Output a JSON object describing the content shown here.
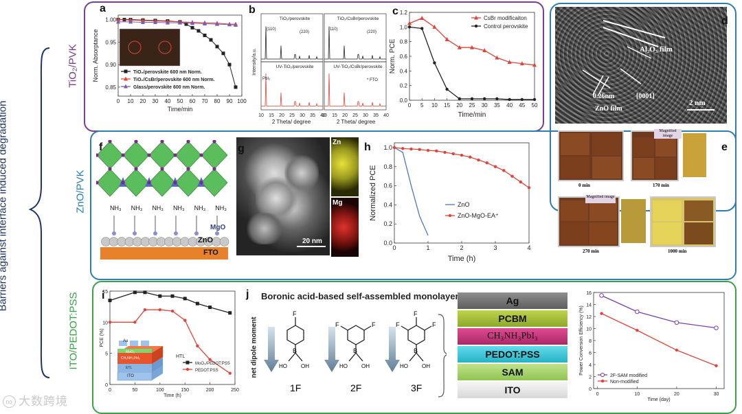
{
  "figure": {
    "side_title": "Barriers against interface induced degradation",
    "rows": [
      "TiO₂/PVK",
      "ZnO/PVK",
      "ITO/PEDOT:PSS"
    ],
    "watermark": "大数跨境",
    "colors": {
      "row1": "#7a3e8f",
      "row2": "#2f7db0",
      "row3": "#3aa14a",
      "red": "#e0443a",
      "black": "#222222",
      "purple": "#7a5bb5",
      "blue": "#4a78c7"
    }
  },
  "panels": {
    "a": {
      "letter": "a"
    },
    "b": {
      "letter": "b"
    },
    "c": {
      "letter": "c"
    },
    "d": {
      "letter": "d",
      "labels": [
        "Al₂O₃ film",
        "0.26nm",
        "[0001]",
        "ZnO film",
        "2 nm"
      ]
    },
    "e": {
      "letter": "e",
      "labels": [
        "0 min",
        "170 min",
        "270 min",
        "1000 min",
        "Magnified image",
        "Magnified image"
      ]
    },
    "f": {
      "letter": "f",
      "labels": [
        "NH₃",
        "NH₃",
        "NH₃",
        "NH₃",
        "NH₃",
        "NH₃",
        "MgO",
        "ZnO",
        "FTO"
      ]
    },
    "g": {
      "letter": "g",
      "labels": [
        "Zn",
        "Mg",
        "20 nm"
      ]
    },
    "h": {
      "letter": "h"
    },
    "i": {
      "letter": "i",
      "stack": [
        "Au",
        "HTL",
        "MoO₃",
        "CH₃NH₃PbI₃",
        "ETL",
        "ITO"
      ]
    },
    "j": {
      "letter": "j",
      "title": "Boronic acid-based self-assembled monolayer",
      "axis": "net dipole moment",
      "molecules": [
        "1F",
        "2F",
        "3F"
      ],
      "atoms": [
        "F",
        "F",
        "F",
        "F",
        "F",
        "F",
        "B",
        "B",
        "B",
        "HO",
        "OH",
        "HO",
        "OH",
        "HO",
        "OH"
      ]
    },
    "stack": {
      "layers": [
        "Ag",
        "PCBM",
        "CH₃NH₃PbI₃",
        "PEDOT:PSS",
        "SAM",
        "ITO"
      ],
      "colors": [
        "#7d7d7d",
        "#a9c13c",
        "#c9347a",
        "#39c6d8",
        "#a9d36a",
        "#eeeeee"
      ]
    }
  },
  "chart_data": [
    {
      "id": "a",
      "type": "line",
      "xlabel": "Time/min",
      "ylabel": "Norm. Absorptance",
      "xlim": [
        0,
        100
      ],
      "ylim": [
        0.83,
        1.01
      ],
      "xticks": [
        0,
        10,
        20,
        30,
        40,
        50,
        60,
        70,
        80,
        90,
        100
      ],
      "yticks": [
        0.85,
        0.9,
        0.95,
        1.0
      ],
      "series": [
        {
          "name": "TiO₂/perovskite 600 nm Norm.",
          "color": "#222222",
          "x": [
            0,
            5,
            10,
            20,
            30,
            40,
            50,
            55,
            60,
            65,
            70,
            75,
            80,
            85,
            90,
            95
          ],
          "y": [
            1.0,
            1.0,
            1.0,
            0.999,
            0.998,
            0.997,
            0.995,
            0.99,
            0.982,
            0.975,
            0.965,
            0.955,
            0.94,
            0.925,
            0.9,
            0.85
          ]
        },
        {
          "name": "TiO₂/CsBr/perovskite 600 nm Norm.",
          "color": "#e0443a",
          "x": [
            0,
            10,
            20,
            30,
            40,
            50,
            60,
            70,
            80,
            90,
            95
          ],
          "y": [
            1.0,
            0.999,
            0.998,
            0.997,
            0.996,
            0.995,
            0.994,
            0.993,
            0.992,
            0.99,
            0.99
          ]
        },
        {
          "name": "Glass/perovskite 600 nm Norm.",
          "color": "#7a5bb5",
          "x": [
            0,
            10,
            20,
            30,
            40,
            50,
            60,
            70,
            80,
            90,
            95
          ],
          "y": [
            0.995,
            0.995,
            0.994,
            0.994,
            0.993,
            0.993,
            0.992,
            0.991,
            0.99,
            0.989,
            0.988
          ]
        }
      ]
    },
    {
      "id": "b",
      "type": "line",
      "xlabel": "2 Theta/ degree",
      "ylabel": "Intensity/a.u.",
      "xticks": [
        10,
        15,
        20,
        25,
        30,
        35,
        40
      ],
      "subplots": [
        "TiO₂/perovskite",
        "TiO₂/CsBr/perovskite",
        "UV-TiO₂/perovskite",
        "UV-TiO₂/CsBr/perovskite"
      ],
      "annotations": [
        "(110)",
        "(220)",
        "(110)",
        "(220)",
        "PbI₂",
        "* FTO"
      ]
    },
    {
      "id": "c",
      "type": "line",
      "xlabel": "Time/min",
      "ylabel": "Norm. PCE",
      "xlim": [
        0,
        50
      ],
      "ylim": [
        0,
        1.2
      ],
      "xticks": [
        0,
        5,
        10,
        15,
        20,
        25,
        30,
        35,
        40,
        45,
        50
      ],
      "yticks": [
        0.0,
        0.2,
        0.4,
        0.6,
        0.8,
        1.0,
        1.2
      ],
      "series": [
        {
          "name": "CsBr modificaiton",
          "color": "#e0443a",
          "x": [
            0,
            5,
            10,
            15,
            20,
            25,
            30,
            35,
            40,
            45,
            50
          ],
          "y": [
            1.05,
            1.12,
            1.0,
            0.83,
            0.72,
            0.72,
            0.68,
            0.58,
            0.52,
            0.5,
            0.48
          ]
        },
        {
          "name": "Control perovskite",
          "color": "#222222",
          "x": [
            0,
            5,
            10,
            15,
            20,
            25,
            30,
            35,
            40,
            45,
            50
          ],
          "y": [
            1.0,
            0.98,
            0.51,
            0.15,
            0.02,
            0.02,
            0.02,
            0.02,
            0.01,
            0.01,
            0.01
          ]
        }
      ]
    },
    {
      "id": "h",
      "type": "line",
      "xlabel": "Time (h)",
      "ylabel": "Normalized PCE",
      "xlim": [
        0,
        4
      ],
      "ylim": [
        0,
        1.05
      ],
      "xticks": [
        0,
        1,
        2,
        3,
        4
      ],
      "yticks": [
        0.0,
        0.2,
        0.4,
        0.6,
        0.8,
        1.0
      ],
      "series": [
        {
          "name": "ZnO",
          "color": "#4a78c7",
          "x": [
            0,
            0.25,
            0.5,
            0.75,
            1.0
          ],
          "y": [
            1.0,
            0.95,
            0.6,
            0.28,
            0.08
          ]
        },
        {
          "name": "ZnO-MgO-EA⁺",
          "color": "#e0443a",
          "x": [
            0,
            0.25,
            0.5,
            0.75,
            1.0,
            1.25,
            1.5,
            1.75,
            2.0,
            2.25,
            2.5,
            2.75,
            3.0,
            3.25,
            3.5,
            3.75,
            4.0
          ],
          "y": [
            1.0,
            0.99,
            0.985,
            0.98,
            0.97,
            0.965,
            0.95,
            0.935,
            0.92,
            0.9,
            0.87,
            0.84,
            0.8,
            0.76,
            0.7,
            0.64,
            0.58
          ]
        }
      ]
    },
    {
      "id": "i",
      "type": "line",
      "xlabel": "Time (h)",
      "ylabel": "PCE (%)",
      "xlim": [
        0,
        250
      ],
      "ylim": [
        0,
        15
      ],
      "xticks": [
        0,
        50,
        100,
        150,
        200,
        250
      ],
      "yticks": [
        0,
        5,
        10,
        15
      ],
      "series": [
        {
          "name": "MoO₃/PEDOT:PSS",
          "color": "#222222",
          "x": [
            0,
            50,
            70,
            100,
            125,
            150,
            175,
            200,
            240
          ],
          "y": [
            13.5,
            14.8,
            14.8,
            14.2,
            14.2,
            13.8,
            13.0,
            12.4,
            11.5
          ]
        },
        {
          "name": "PEDOT:PSS",
          "color": "#e0443a",
          "x": [
            0,
            50,
            70,
            100,
            125,
            150,
            175,
            200,
            240
          ],
          "y": [
            10.0,
            10.0,
            12.0,
            12.0,
            11.8,
            10.3,
            6.2,
            4.0,
            1.8
          ]
        }
      ]
    },
    {
      "id": "k",
      "type": "line",
      "xlabel": "Time (day)",
      "ylabel": "Power Conversion Efficiency (%)",
      "xlim": [
        -1,
        32
      ],
      "ylim": [
        0,
        16
      ],
      "xticks": [
        0,
        10,
        20,
        30
      ],
      "yticks": [
        0,
        2,
        4,
        6,
        8,
        10,
        12,
        14,
        16
      ],
      "series": [
        {
          "name": "2F-SAM modified",
          "color": "#7a3fb0",
          "x": [
            1,
            10,
            20,
            30
          ],
          "y": [
            15.5,
            12.8,
            11.0,
            10.1
          ]
        },
        {
          "name": "Non-modified",
          "color": "#e0443a",
          "x": [
            1,
            10,
            20,
            30
          ],
          "y": [
            12.5,
            9.7,
            6.4,
            3.8
          ]
        }
      ]
    }
  ]
}
